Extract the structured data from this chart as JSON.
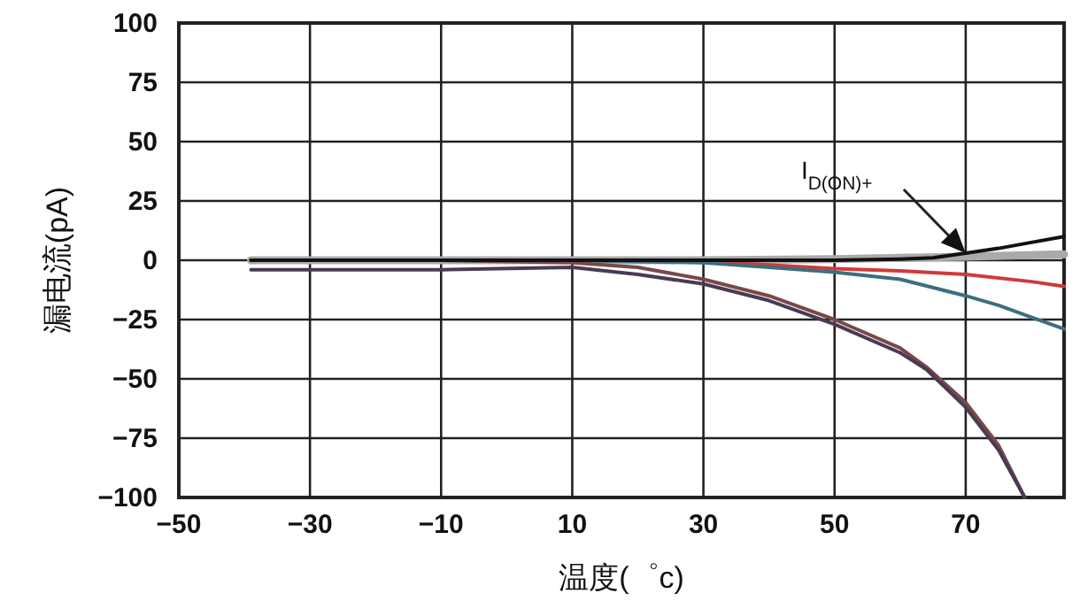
{
  "chart_data": {
    "type": "line",
    "xlabel": "温度(゜c)",
    "ylabel": "漏电流(pA)",
    "xlim": [
      -50,
      85
    ],
    "xticks": [
      -50,
      -30,
      -10,
      10,
      30,
      50,
      70
    ],
    "ylim": [
      -100,
      100
    ],
    "yticks": [
      -100,
      -75,
      -50,
      -25,
      0,
      25,
      50,
      75,
      100
    ],
    "grid": true,
    "marker": "none",
    "line_style": "solid",
    "annotations": [
      "I$_{D(ON)+}$"
    ],
    "series": [
      {
        "color": "#aaaaaa",
        "x": [
          -39,
          -10,
          10,
          30,
          50,
          60,
          70,
          85
        ],
        "values": [
          0,
          0,
          0,
          0,
          0.5,
          1,
          1.5,
          2.5
        ]
      },
      {
        "color": "#d03a3a",
        "x": [
          10,
          30,
          40,
          50,
          60,
          70,
          80,
          85
        ],
        "values": [
          0,
          -0.5,
          -2,
          -3.5,
          -4.5,
          -6,
          -9,
          -11
        ]
      },
      {
        "color": "#3d6e80",
        "x": [
          -39,
          -10,
          10,
          30,
          40,
          50,
          60,
          70,
          75,
          80,
          85
        ],
        "values": [
          0,
          0,
          0,
          -1,
          -3,
          -5,
          -8,
          -15,
          -19,
          -24,
          -29
        ]
      },
      {
        "color": "#7a4848",
        "x": [
          -39,
          -10,
          10,
          20,
          30,
          40,
          50,
          60,
          64,
          70,
          75,
          79
        ],
        "values": [
          0,
          0,
          -1,
          -3,
          -8,
          -15,
          -25,
          -37,
          -45,
          -60,
          -78,
          -100
        ]
      },
      {
        "color": "#4a3a55",
        "x": [
          -39,
          -10,
          10,
          20,
          30,
          40,
          50,
          60,
          64,
          70,
          75,
          79
        ],
        "values": [
          -4,
          -4,
          -3,
          -6,
          -10,
          -17,
          -27,
          -39,
          -46,
          -62,
          -80,
          -100
        ]
      },
      {
        "color": "#111111",
        "x": [
          -39,
          -10,
          10,
          30,
          50,
          60,
          65,
          70,
          75,
          80,
          85
        ],
        "values": [
          0,
          0,
          0,
          0,
          0,
          0.5,
          1,
          3,
          5,
          7.5,
          10
        ]
      }
    ]
  }
}
